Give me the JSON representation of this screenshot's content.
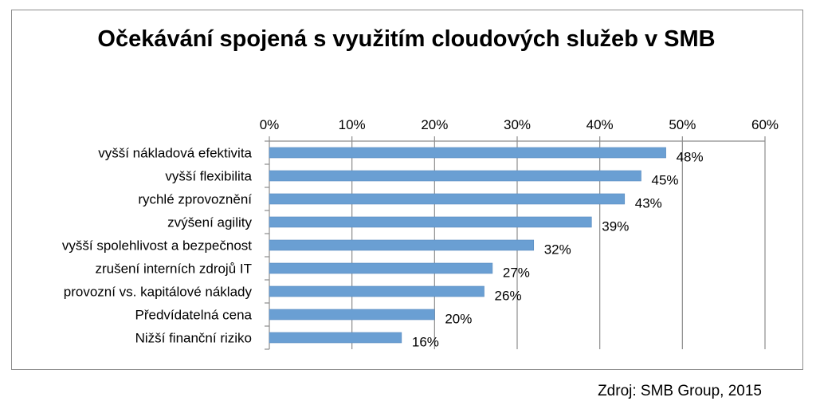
{
  "chart_data": {
    "type": "bar",
    "orientation": "horizontal",
    "title": "Očekávání spojená s využitím cloudových služeb v SMB",
    "xlabel": "",
    "ylabel": "",
    "xlim": [
      0,
      60
    ],
    "x_ticks": [
      "0%",
      "10%",
      "20%",
      "30%",
      "40%",
      "50%",
      "60%"
    ],
    "x_axis_position": "top",
    "grid": true,
    "legend": "none",
    "bar_color": "#6a9fd3",
    "categories": [
      "vyšší nákladová efektivita",
      "vyšší flexibilita",
      "rychlé zprovoznění",
      "zvýšení agility",
      "vyšší spolehlivost a bezpečnost",
      "zrušení interních zdrojů IT",
      "provozní vs. kapitálové náklady",
      "Předvídatelná cena",
      "Nižší finanční riziko"
    ],
    "values": [
      48,
      45,
      43,
      39,
      32,
      27,
      26,
      20,
      16
    ],
    "data_labels": [
      "48%",
      "45%",
      "43%",
      "39%",
      "32%",
      "27%",
      "26%",
      "20%",
      "16%"
    ]
  },
  "source": "Zdroj: SMB Group, 2015"
}
